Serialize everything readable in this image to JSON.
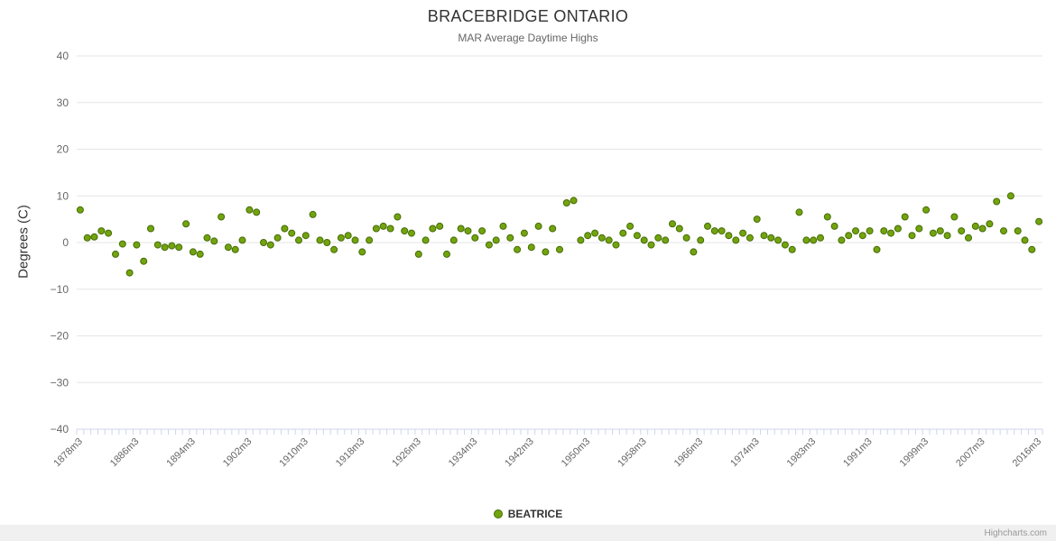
{
  "header": {
    "title": "BRACEBRIDGE ONTARIO",
    "subtitle": "MAR Average Daytime Highs"
  },
  "legend": {
    "series_label": "BEATRICE"
  },
  "credits": "Highcharts.com",
  "colors": {
    "marker_fill": "#72A40E",
    "marker_stroke": "#476B08",
    "grid": "#e6e6e6",
    "axis_line": "#ccd6eb",
    "tick": "#ccd6eb",
    "axis_text": "#666666",
    "title_text": "#333333"
  },
  "chart_data": {
    "type": "scatter",
    "title": "BRACEBRIDGE ONTARIO",
    "subtitle": "MAR Average Daytime Highs",
    "xlabel": "",
    "ylabel": "Degrees (C)",
    "ylim": [
      -40,
      40
    ],
    "yticks": [
      40,
      30,
      20,
      10,
      0,
      -10,
      -20,
      -30,
      -40
    ],
    "grid": "horizontal",
    "legend_position": "bottom",
    "x_tick_step": 8,
    "x_tick_labels": [
      "1878m3",
      "1886m3",
      "1894m3",
      "1902m3",
      "1910m3",
      "1918m3",
      "1926m3",
      "1934m3",
      "1942m3",
      "1950m3",
      "1958m3",
      "1966m3",
      "1974m3",
      "1983m3",
      "1991m3",
      "1999m3",
      "2007m3",
      "2016m3"
    ],
    "categories": [
      "1878m3",
      "1879m3",
      "1880m3",
      "1881m3",
      "1882m3",
      "1883m3",
      "1884m3",
      "1885m3",
      "1886m3",
      "1887m3",
      "1888m3",
      "1889m3",
      "1890m3",
      "1891m3",
      "1892m3",
      "1893m3",
      "1894m3",
      "1895m3",
      "1896m3",
      "1897m3",
      "1898m3",
      "1899m3",
      "1900m3",
      "1901m3",
      "1902m3",
      "1903m3",
      "1904m3",
      "1905m3",
      "1906m3",
      "1907m3",
      "1908m3",
      "1909m3",
      "1910m3",
      "1911m3",
      "1912m3",
      "1913m3",
      "1914m3",
      "1915m3",
      "1916m3",
      "1917m3",
      "1918m3",
      "1919m3",
      "1920m3",
      "1921m3",
      "1922m3",
      "1923m3",
      "1924m3",
      "1925m3",
      "1926m3",
      "1927m3",
      "1928m3",
      "1929m3",
      "1930m3",
      "1931m3",
      "1932m3",
      "1933m3",
      "1934m3",
      "1935m3",
      "1936m3",
      "1937m3",
      "1938m3",
      "1939m3",
      "1940m3",
      "1941m3",
      "1942m3",
      "1943m3",
      "1944m3",
      "1945m3",
      "1946m3",
      "1947m3",
      "1948m3",
      "1949m3",
      "1950m3",
      "1951m3",
      "1952m3",
      "1953m3",
      "1954m3",
      "1955m3",
      "1956m3",
      "1957m3",
      "1958m3",
      "1959m3",
      "1960m3",
      "1961m3",
      "1962m3",
      "1963m3",
      "1964m3",
      "1965m3",
      "1966m3",
      "1967m3",
      "1968m3",
      "1969m3",
      "1970m3",
      "1971m3",
      "1972m3",
      "1973m3",
      "1974m3",
      "1975m3",
      "1976m3",
      "1977m3",
      "1978m3",
      "1979m3",
      "1980m3",
      "1981m3",
      "1983m3",
      "1984m3",
      "1985m3",
      "1986m3",
      "1987m3",
      "1988m3",
      "1989m3",
      "1990m3",
      "1991m3",
      "1992m3",
      "1993m3",
      "1994m3",
      "1995m3",
      "1996m3",
      "1997m3",
      "1998m3",
      "1999m3",
      "2000m3",
      "2001m3",
      "2002m3",
      "2003m3",
      "2004m3",
      "2005m3",
      "2006m3",
      "2007m3",
      "2008m3",
      "2010m3",
      "2011m3",
      "2012m3",
      "2013m3",
      "2014m3",
      "2015m3",
      "2016m3"
    ],
    "series": [
      {
        "name": "BEATRICE",
        "color": "#72A40E",
        "values": [
          7,
          1,
          1.2,
          2.5,
          2,
          -2.5,
          -0.3,
          -6.5,
          -0.5,
          -4,
          3,
          -0.5,
          -1,
          -0.7,
          -1,
          4,
          -2,
          -2.5,
          1,
          0.3,
          5.5,
          -1,
          -1.5,
          0.5,
          7,
          6.5,
          0,
          -0.5,
          1,
          3,
          2,
          0.5,
          1.5,
          6,
          0.5,
          0,
          -1.5,
          1,
          1.5,
          0.5,
          -2,
          0.5,
          3,
          3.5,
          3,
          5.5,
          2.5,
          2,
          -2.5,
          0.5,
          3,
          3.5,
          -2.5,
          0.5,
          3,
          2.5,
          1,
          2.5,
          -0.5,
          0.5,
          3.5,
          1,
          -1.5,
          2,
          -1,
          3.5,
          -2,
          3,
          -1.5,
          8.5,
          9,
          0.5,
          1.5,
          2,
          1,
          0.5,
          -0.5,
          2,
          3.5,
          1.5,
          0.5,
          -0.5,
          1,
          0.5,
          4,
          3,
          1,
          -2,
          0.5,
          3.5,
          2.5,
          2.5,
          1.5,
          0.5,
          2,
          1,
          5,
          1.5,
          1,
          0.5,
          -0.5,
          -1.5,
          6.5,
          0.5,
          0.5,
          1,
          5.5,
          3.5,
          0.5,
          1.5,
          2.5,
          1.5,
          2.5,
          -1.5,
          2.5,
          2,
          3,
          5.5,
          1.5,
          3,
          7,
          2,
          2.5,
          1.5,
          5.5,
          2.5,
          1,
          3.5,
          3,
          4,
          8.8,
          2.5,
          10,
          2.5,
          0.5,
          -1.5,
          4.5
        ]
      }
    ]
  }
}
